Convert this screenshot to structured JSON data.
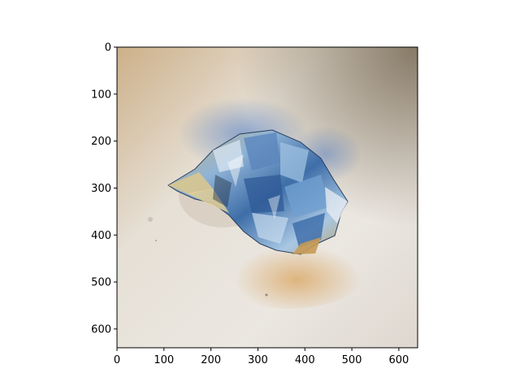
{
  "figure": {
    "x_axis": {
      "ticks": [
        0,
        100,
        200,
        300,
        400,
        500,
        600
      ],
      "range": [
        0,
        640
      ]
    },
    "y_axis": {
      "ticks": [
        0,
        100,
        200,
        300,
        400,
        500,
        600
      ],
      "range": [
        0,
        640
      ],
      "inverted": true
    },
    "image": {
      "subject": "crumpled-aluminum-foil-icon",
      "background_color": "#e7e1d8",
      "foil_color": "#7fa6c8"
    }
  }
}
